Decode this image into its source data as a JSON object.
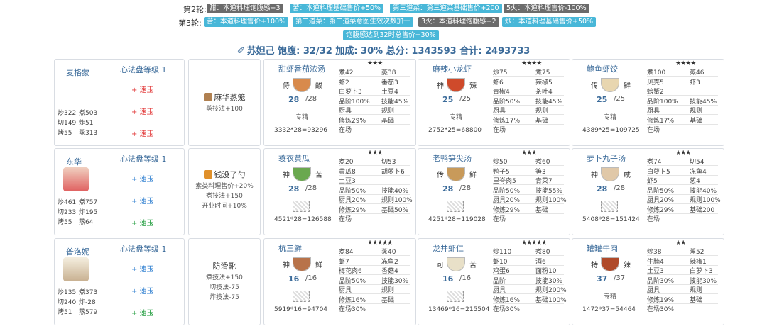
{
  "rules": {
    "round2": {
      "label": "第2轮:",
      "chips": [
        {
          "text": "甜：本道料理饱腹感+3",
          "color": "gray"
        },
        {
          "text": "苦：本道料理基础售价+50%",
          "color": "blue"
        },
        {
          "text": "第三道菜：第三道菜基础售价+200",
          "color": "blue"
        },
        {
          "text": "5火：本道料理售价-100%",
          "color": "gray"
        }
      ]
    },
    "round3": {
      "label": "第3轮:",
      "chips": [
        {
          "text": "苦：本道料理售价+100%",
          "color": "blue"
        },
        {
          "text": "第二道菜：第二道菜意图生效次数加一",
          "color": "blue"
        },
        {
          "text": "3火：本道料理饱腹感+2",
          "color": "gray"
        },
        {
          "text": "炒：本道料理基础售价+50%",
          "color": "blue"
        }
      ],
      "extra": {
        "text": "饱腹感达到32时总售价+30%",
        "color": "blue"
      }
    }
  },
  "summary": {
    "icon": "✐",
    "text": "苏妲己 饱腹: 32/32 加成: 30% 总分: 1343593 合计: 2493733"
  },
  "rows": [
    {
      "chef": {
        "name": "麦格蒙",
        "level": "心法盘等级 1",
        "jades": [
          {
            "text": "+ 速玉",
            "color": "red"
          },
          {
            "text": "+ 速玉",
            "color": "red"
          },
          {
            "text": "+ 速玉",
            "color": "red"
          }
        ],
        "stats": [
          [
            "炒322",
            "煮503"
          ],
          [
            "切149",
            "炸51"
          ],
          [
            "烤55",
            "蒸313"
          ]
        ]
      },
      "equip": {
        "name": "麻华蒸笼",
        "effects": [
          "蒸技法+100"
        ],
        "icon": "#b08050"
      },
      "dishes": [
        {
          "name": "甜虾番茄浓汤",
          "stars": "★★★",
          "cond": [
            "侍",
            "酸"
          ],
          "qty": "28",
          "max": "/28",
          "skill": "专精",
          "calc": "3332*28=93296",
          "bowl": "#d88a4c",
          "ings": [
            [
              "煮42",
              "蒸38"
            ],
            [
              "虾2",
              "番茄3"
            ],
            [
              "白萝卜3",
              "土豆4"
            ],
            [
              "品阶100%",
              "技能45%"
            ],
            [
              "厨具",
              "规则"
            ],
            [
              "修炼29%",
              "基础"
            ],
            [
              "在场",
              ""
            ]
          ]
        },
        {
          "name": "麻辣小龙虾",
          "stars": "★★★★",
          "cond": [
            "神",
            "辣"
          ],
          "qty": "25",
          "max": "/25",
          "skill": "专精",
          "calc": "2752*25=68800",
          "bowl": "#cf4a2b",
          "ings": [
            [
              "炒75",
              "煮75"
            ],
            [
              "虾6",
              "辣椒5"
            ],
            [
              "青椒4",
              "茶叶4"
            ],
            [
              "品阶50%",
              "技能45%"
            ],
            [
              "厨具",
              "规则"
            ],
            [
              "修炼17%",
              "基础"
            ],
            [
              "在场",
              ""
            ]
          ]
        },
        {
          "name": "鲍鱼虾饺",
          "stars": "★★★★",
          "cond": [
            "传",
            "鲜"
          ],
          "qty": "25",
          "max": "/25",
          "skill": "专精",
          "calc": "4389*25=109725",
          "bowl": "#e8d6b0",
          "ings": [
            [
              "煮100",
              "蒸46"
            ],
            [
              "贝壳5",
              "虾3"
            ],
            [
              "螃蟹2",
              ""
            ],
            [
              "品阶100%",
              "技能45%"
            ],
            [
              "厨具",
              "规则"
            ],
            [
              "修炼17%",
              "基础"
            ],
            [
              "在场",
              ""
            ]
          ]
        }
      ]
    },
    {
      "chef": {
        "name": "东华",
        "level": "心法盘等级 1",
        "jades": [
          {
            "text": "+ 速玉",
            "color": "blue"
          },
          {
            "text": "+ 速玉",
            "color": "blue"
          },
          {
            "text": "+ 速玉",
            "color": "green"
          }
        ],
        "stats": [
          [
            "炒461",
            "煮757"
          ],
          [
            "切233",
            "炸195"
          ],
          [
            "烤55",
            "蒸64"
          ]
        ]
      },
      "equip": {
        "name": "钱没了勺",
        "effects": [
          "素类料理售价+20%",
          "煮技法+150",
          "开业时间+10%"
        ],
        "icon": "#e0902a"
      },
      "dishes": [
        {
          "name": "蓑衣黄瓜",
          "stars": "★★★",
          "cond": [
            "神",
            "苦"
          ],
          "qty": "28",
          "max": "/28",
          "skill": "",
          "calc": "4521*28=126588",
          "bowl": "#6aa84f",
          "ings": [
            [
              "煮20",
              "切53"
            ],
            [
              "黄瓜8",
              "胡萝卜6"
            ],
            [
              "土豆3",
              ""
            ],
            [
              "品阶50%",
              "技能40%"
            ],
            [
              "厨具20%",
              "规则100%"
            ],
            [
              "修炼29%",
              "基础50%"
            ],
            [
              "在场",
              ""
            ]
          ]
        },
        {
          "name": "老鸭笋尖汤",
          "stars": "★★★",
          "cond": [
            "传",
            "鲜"
          ],
          "qty": "28",
          "max": "/28",
          "skill": "",
          "calc": "4251*28=119028",
          "bowl": "#c89a5a",
          "ings": [
            [
              "炒50",
              "煮60"
            ],
            [
              "鸭子5",
              "笋3"
            ],
            [
              "里脊肉5",
              "青菜7"
            ],
            [
              "品阶50%",
              "技能55%"
            ],
            [
              "厨具20%",
              "规则100%"
            ],
            [
              "修炼29%",
              "基础"
            ],
            [
              "在场",
              ""
            ]
          ]
        },
        {
          "name": "萝卜丸子汤",
          "stars": "★★★",
          "cond": [
            "神",
            "咸"
          ],
          "qty": "28",
          "max": "/28",
          "skill": "",
          "calc": "5408*28=151424",
          "bowl": "#e0c8a8",
          "ings": [
            [
              "煮74",
              "切54"
            ],
            [
              "白萝卜5",
              "冻鱼4"
            ],
            [
              "虾5",
              "葱4"
            ],
            [
              "品阶50%",
              "技能40%"
            ],
            [
              "厨具20%",
              "规则100%"
            ],
            [
              "修炼29%",
              "基础200"
            ],
            [
              "在场",
              ""
            ]
          ]
        }
      ]
    },
    {
      "chef": {
        "name": "普洛妮",
        "level": "心法盘等级 1",
        "jades": [
          {
            "text": "+ 速玉",
            "color": "blue"
          },
          {
            "text": "+ 速玉",
            "color": "blue"
          },
          {
            "text": "+ 速玉",
            "color": "green"
          }
        ],
        "stats": [
          [
            "炒135",
            "煮373"
          ],
          [
            "切240",
            "炸-28"
          ],
          [
            "烤51",
            "蒸579"
          ]
        ]
      },
      "equip": {
        "name": "防滑靴",
        "effects": [
          "煮技法+150",
          "切技法-75",
          "炸技法-75"
        ],
        "icon": ""
      },
      "dishes": [
        {
          "name": "杭三鲜",
          "stars": "★★★★★",
          "cond": [
            "神",
            "鲜"
          ],
          "qty": "16",
          "max": "/16",
          "skill": "",
          "calc": "5919*16=94704",
          "bowl": "#b8734a",
          "ings": [
            [
              "煮84",
              "蒸40"
            ],
            [
              "虾7",
              "冻鱼2"
            ],
            [
              "梅花肉6",
              "香菇4"
            ],
            [
              "品阶50%",
              "技能30%"
            ],
            [
              "厨具",
              "规则"
            ],
            [
              "修炼16%",
              "基础"
            ],
            [
              "在场30%",
              ""
            ]
          ]
        },
        {
          "name": "龙井虾仁",
          "stars": "★★★★★",
          "cond": [
            "可",
            "苦"
          ],
          "qty": "16",
          "max": "/16",
          "skill": "",
          "calc": "13469*16=215504",
          "bowl": "#e8e0c8",
          "ings": [
            [
              "炒110",
              "煮80"
            ],
            [
              "虾10",
              "酒6"
            ],
            [
              "鸡蛋6",
              "面粉10"
            ],
            [
              "品阶",
              "技能30%"
            ],
            [
              "厨具",
              "规则200%"
            ],
            [
              "修炼16%",
              "基础100%"
            ],
            [
              "在场30%",
              ""
            ]
          ]
        },
        {
          "name": "罐罐牛肉",
          "stars": "★★",
          "cond": [
            "特",
            "辣"
          ],
          "qty": "37",
          "max": "/37",
          "skill": "专精",
          "calc": "1472*37=54464",
          "bowl": "#b04a2a",
          "ings": [
            [
              "炒38",
              "蒸52"
            ],
            [
              "牛腩4",
              "辣椒1"
            ],
            [
              "土豆3",
              "白萝卜3"
            ],
            [
              "品阶30%",
              "技能30%"
            ],
            [
              "厨具",
              "规则"
            ],
            [
              "修炼19%",
              "基础"
            ],
            [
              "在场30%",
              ""
            ]
          ]
        }
      ]
    }
  ]
}
